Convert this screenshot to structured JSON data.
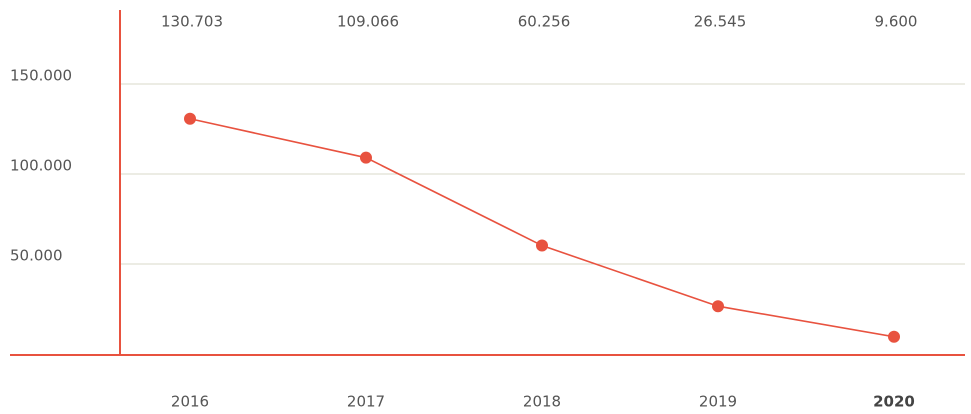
{
  "chart_data": {
    "type": "line",
    "categories": [
      "2016",
      "2017",
      "2018",
      "2019",
      "2020"
    ],
    "series": [
      {
        "color": "#e8523f",
        "values": [
          130703,
          109066,
          60256,
          26545,
          9600
        ],
        "value_labels": [
          "130.703",
          "109.066",
          "60.256",
          "26.545",
          "9.600"
        ]
      }
    ],
    "ylim": [
      0,
      190000
    ],
    "yticks": [
      {
        "value": 50000,
        "label": "50.000"
      },
      {
        "value": 100000,
        "label": "100.000"
      },
      {
        "value": 150000,
        "label": "150.000"
      }
    ],
    "grid": true
  }
}
